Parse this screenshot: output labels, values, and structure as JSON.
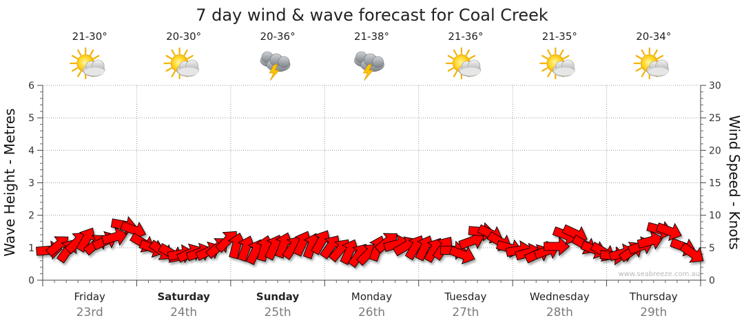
{
  "chart_data": {
    "type": "line",
    "title": "7 day wind & wave forecast for Coal Creek",
    "left_axis": {
      "label": "Wave Height - Metres",
      "ylim": [
        0,
        6
      ],
      "ticks": [
        "0",
        "1",
        "2",
        "3",
        "4",
        "5",
        "6"
      ]
    },
    "right_axis": {
      "label": "Wind Speed - Knots",
      "ylim": [
        0,
        30
      ],
      "ticks": [
        "0",
        "5",
        "10",
        "15",
        "20",
        "25",
        "30"
      ]
    },
    "days": [
      {
        "name": "Friday",
        "date": "23rd",
        "temp": "21-30°",
        "icon": "partly-cloudy-sun-icon",
        "bold": false
      },
      {
        "name": "Saturday",
        "date": "24th",
        "temp": "20-30°",
        "icon": "partly-cloudy-sun-icon",
        "bold": true
      },
      {
        "name": "Sunday",
        "date": "25th",
        "temp": "20-36°",
        "icon": "thunderstorm-icon",
        "bold": true
      },
      {
        "name": "Monday",
        "date": "26th",
        "temp": "21-38°",
        "icon": "thunderstorm-icon",
        "bold": false
      },
      {
        "name": "Tuesday",
        "date": "27th",
        "temp": "21-36°",
        "icon": "partly-cloudy-sun-icon",
        "bold": false
      },
      {
        "name": "Wednesday",
        "date": "28th",
        "temp": "21-35°",
        "icon": "partly-cloudy-sun-icon",
        "bold": false
      },
      {
        "name": "Thursday",
        "date": "29th",
        "temp": "20-34°",
        "icon": "partly-cloudy-sun-icon",
        "bold": false
      }
    ],
    "wind_series": {
      "name": "Wind",
      "color": "#ff0000",
      "points": [
        {
          "t": 0.0,
          "knots": 4.6,
          "dir": 265
        },
        {
          "t": 0.1,
          "knots": 5.3,
          "dir": 230
        },
        {
          "t": 0.2,
          "knots": 4.5,
          "dir": 215
        },
        {
          "t": 0.3,
          "knots": 5.8,
          "dir": 225
        },
        {
          "t": 0.4,
          "knots": 6.2,
          "dir": 210
        },
        {
          "t": 0.5,
          "knots": 5.5,
          "dir": 230
        },
        {
          "t": 0.6,
          "knots": 6.0,
          "dir": 245
        },
        {
          "t": 0.7,
          "knots": 6.6,
          "dir": 255
        },
        {
          "t": 0.8,
          "knots": 8.5,
          "dir": 280
        },
        {
          "t": 0.9,
          "knots": 7.8,
          "dir": 290
        },
        {
          "t": 1.0,
          "knots": 5.8,
          "dir": 300
        },
        {
          "t": 1.1,
          "knots": 5.0,
          "dir": 290
        },
        {
          "t": 1.2,
          "knots": 4.6,
          "dir": 305
        },
        {
          "t": 1.3,
          "knots": 4.2,
          "dir": 300
        },
        {
          "t": 1.4,
          "knots": 4.0,
          "dir": 260
        },
        {
          "t": 1.5,
          "knots": 4.1,
          "dir": 245
        },
        {
          "t": 1.6,
          "knots": 4.2,
          "dir": 250
        },
        {
          "t": 1.7,
          "knots": 4.4,
          "dir": 245
        },
        {
          "t": 1.8,
          "knots": 5.0,
          "dir": 230
        },
        {
          "t": 1.9,
          "knots": 6.0,
          "dir": 225
        },
        {
          "t": 2.0,
          "knots": 5.2,
          "dir": 195
        },
        {
          "t": 2.1,
          "knots": 4.8,
          "dir": 200
        },
        {
          "t": 2.2,
          "knots": 4.3,
          "dir": 205
        },
        {
          "t": 2.3,
          "knots": 4.8,
          "dir": 195
        },
        {
          "t": 2.4,
          "knots": 5.0,
          "dir": 205
        },
        {
          "t": 2.5,
          "knots": 5.3,
          "dir": 200
        },
        {
          "t": 2.6,
          "knots": 5.0,
          "dir": 215
        },
        {
          "t": 2.7,
          "knots": 5.6,
          "dir": 205
        },
        {
          "t": 2.8,
          "knots": 5.2,
          "dir": 200
        },
        {
          "t": 2.9,
          "knots": 5.8,
          "dir": 210
        },
        {
          "t": 3.0,
          "knots": 5.1,
          "dir": 215
        },
        {
          "t": 3.1,
          "knots": 4.6,
          "dir": 220
        },
        {
          "t": 3.2,
          "knots": 4.3,
          "dir": 205
        },
        {
          "t": 3.3,
          "knots": 3.8,
          "dir": 215
        },
        {
          "t": 3.4,
          "knots": 4.0,
          "dir": 225
        },
        {
          "t": 3.5,
          "knots": 4.8,
          "dir": 200
        },
        {
          "t": 3.6,
          "knots": 5.8,
          "dir": 230
        },
        {
          "t": 3.7,
          "knots": 5.5,
          "dir": 255
        },
        {
          "t": 3.8,
          "knots": 5.2,
          "dir": 240
        },
        {
          "t": 3.9,
          "knots": 5.0,
          "dir": 210
        },
        {
          "t": 4.0,
          "knots": 4.9,
          "dir": 205
        },
        {
          "t": 4.1,
          "knots": 4.6,
          "dir": 210
        },
        {
          "t": 4.2,
          "knots": 4.9,
          "dir": 215
        },
        {
          "t": 4.3,
          "knots": 4.6,
          "dir": 270
        },
        {
          "t": 4.4,
          "knots": 4.0,
          "dir": 290
        },
        {
          "t": 4.5,
          "knots": 6.0,
          "dir": 250
        },
        {
          "t": 4.6,
          "knots": 7.5,
          "dir": 275
        },
        {
          "t": 4.7,
          "knots": 7.2,
          "dir": 295
        },
        {
          "t": 4.8,
          "knots": 6.0,
          "dir": 300
        },
        {
          "t": 4.9,
          "knots": 5.0,
          "dir": 285
        },
        {
          "t": 5.0,
          "knots": 4.6,
          "dir": 260
        },
        {
          "t": 5.1,
          "knots": 4.2,
          "dir": 255
        },
        {
          "t": 5.2,
          "knots": 4.0,
          "dir": 245
        },
        {
          "t": 5.3,
          "knots": 4.5,
          "dir": 250
        },
        {
          "t": 5.4,
          "knots": 5.2,
          "dir": 270
        },
        {
          "t": 5.5,
          "knots": 7.0,
          "dir": 290
        },
        {
          "t": 5.6,
          "knots": 7.2,
          "dir": 295
        },
        {
          "t": 5.7,
          "knots": 5.5,
          "dir": 300
        },
        {
          "t": 5.8,
          "knots": 4.8,
          "dir": 290
        },
        {
          "t": 5.9,
          "knots": 4.4,
          "dir": 300
        },
        {
          "t": 6.0,
          "knots": 3.8,
          "dir": 275
        },
        {
          "t": 6.1,
          "knots": 4.1,
          "dir": 255
        },
        {
          "t": 6.2,
          "knots": 4.4,
          "dir": 235
        },
        {
          "t": 6.3,
          "knots": 5.2,
          "dir": 250
        },
        {
          "t": 6.4,
          "knots": 6.0,
          "dir": 255
        },
        {
          "t": 6.5,
          "knots": 7.8,
          "dir": 285
        },
        {
          "t": 6.6,
          "knots": 7.6,
          "dir": 290
        },
        {
          "t": 6.75,
          "knots": 5.2,
          "dir": 290
        },
        {
          "t": 6.85,
          "knots": 4.2,
          "dir": 305
        }
      ]
    },
    "grid": true,
    "legend": "none"
  },
  "watermark": "www.seabreeze.com.au"
}
